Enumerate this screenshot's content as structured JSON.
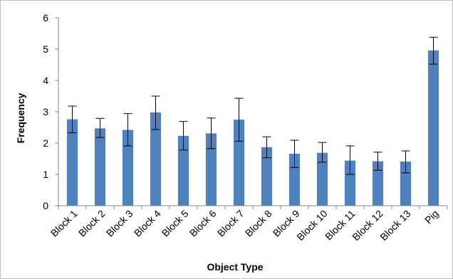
{
  "chart_data": {
    "type": "bar",
    "title": "",
    "xlabel": "Object Type",
    "ylabel": "Frequency",
    "ylim": [
      0,
      6
    ],
    "yticks": [
      0,
      1,
      2,
      3,
      4,
      5,
      6
    ],
    "grid": false,
    "legend": "none",
    "bar_color": "#4F81BD",
    "categories": [
      "Block 1",
      "Block 2",
      "Block 3",
      "Block 4",
      "Block 5",
      "Block 6",
      "Block 7",
      "Block 8",
      "Block 9",
      "Block 10",
      "Block 11",
      "Block 12",
      "Block 13",
      "Pig"
    ],
    "series": [
      {
        "values": [
          2.76,
          2.47,
          2.42,
          2.98,
          2.23,
          2.31,
          2.75,
          1.87,
          1.66,
          1.69,
          1.44,
          1.42,
          1.41,
          4.96
        ],
        "error_low": [
          2.33,
          2.18,
          1.91,
          2.43,
          1.78,
          1.82,
          2.06,
          1.53,
          1.22,
          1.39,
          1.0,
          1.13,
          1.05,
          4.52
        ],
        "error_high": [
          3.18,
          2.79,
          2.94,
          3.5,
          2.69,
          2.8,
          3.43,
          2.2,
          2.09,
          2.02,
          1.91,
          1.71,
          1.75,
          5.38
        ]
      }
    ]
  }
}
